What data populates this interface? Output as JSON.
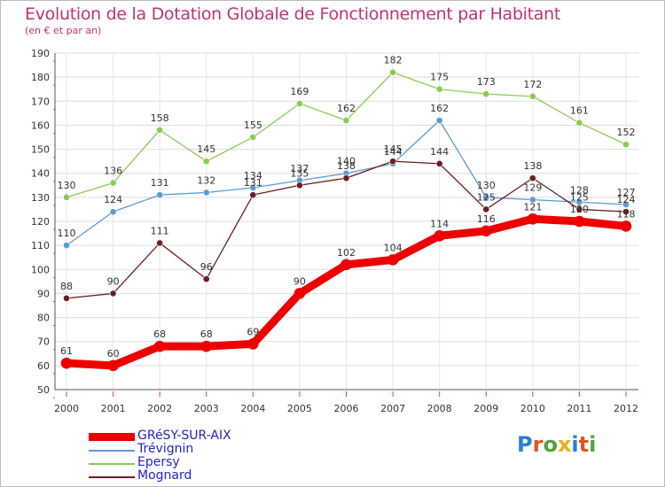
{
  "title": "Evolution de la Dotation Globale de Fonctionnement par Habitant",
  "subtitle": "(en € et par an)",
  "logo": {
    "text": "Proxiti",
    "colors": [
      "#2a7fd4",
      "#e2551e",
      "#56a23f",
      "#e8b21f",
      "#2a7fd4",
      "#e2551e",
      "#56a23f"
    ]
  },
  "chart_data": {
    "type": "line",
    "title": "Evolution de la Dotation Globale de Fonctionnement par Habitant",
    "ylabel": "(en € et par an)",
    "x": [
      "2000",
      "2001",
      "2002",
      "2003",
      "2004",
      "2005",
      "2006",
      "2007",
      "2008",
      "2009",
      "2010",
      "2011",
      "2012"
    ],
    "ylim": [
      50,
      190
    ],
    "yticks": [
      50,
      60,
      70,
      80,
      90,
      100,
      110,
      120,
      130,
      140,
      150,
      160,
      170,
      180,
      190
    ],
    "grid": true,
    "legend_position": "bottom-left",
    "series": [
      {
        "name": "GRéSY-SUR-AIX",
        "color": "#ee0000",
        "values": [
          61,
          60,
          68,
          68,
          69,
          90,
          102,
          104,
          114,
          116,
          121,
          120,
          118
        ]
      },
      {
        "name": "Trévignin",
        "color": "#5b9bd5",
        "values": [
          110,
          124,
          131,
          132,
          134,
          137,
          140,
          144,
          162,
          130,
          129,
          128,
          127
        ]
      },
      {
        "name": "Epersy",
        "color": "#88cc55",
        "values": [
          130,
          136,
          158,
          145,
          155,
          169,
          162,
          182,
          175,
          173,
          172,
          161,
          152
        ]
      },
      {
        "name": "Mognard",
        "color": "#6b1f1f",
        "values": [
          88,
          90,
          111,
          96,
          131,
          135,
          138,
          145,
          144,
          125,
          138,
          125,
          124
        ]
      }
    ],
    "data_labels": [
      [
        "61",
        "60",
        "68",
        "68",
        "69",
        "90",
        "102",
        "104",
        "114",
        "116",
        "121",
        "120",
        "118"
      ],
      [
        "110",
        "124",
        "131",
        "132",
        "134",
        "137",
        "140",
        "144",
        "162",
        "130",
        "129",
        "128",
        "127"
      ],
      [
        "130",
        "136",
        "158",
        "145",
        "155",
        "169",
        "162",
        "182",
        "175",
        "173",
        "172",
        "161",
        "152"
      ],
      [
        "88",
        "90",
        "111",
        "96",
        "131",
        "135",
        "138",
        "145",
        "144",
        "125",
        "138",
        "125",
        "124"
      ]
    ]
  }
}
